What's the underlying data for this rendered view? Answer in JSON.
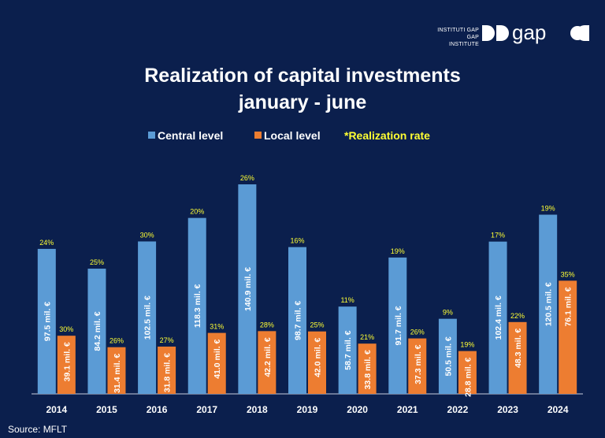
{
  "brand": {
    "line1": "INSTITUTI GAP",
    "line2": "GAP INSTITUTE",
    "logo_text": "gap"
  },
  "source": "Source: MFLT",
  "colors": {
    "background": "#0b1f4d",
    "central": "#5b9bd5",
    "local": "#ed7d31",
    "rate": "#ffff33",
    "text": "#ffffff"
  },
  "chart_data": {
    "type": "bar",
    "title": "Realization of capital investments",
    "subtitle": "january - june",
    "legend_position": "top",
    "categories": [
      "2014",
      "2015",
      "2016",
      "2017",
      "2018",
      "2019",
      "2020",
      "2021",
      "2022",
      "2023",
      "2024"
    ],
    "series": [
      {
        "name": "Central level",
        "values": [
          97.5,
          84.2,
          102.5,
          118.3,
          140.9,
          98.7,
          58.7,
          91.7,
          50.5,
          102.4,
          120.5
        ],
        "labels": [
          "97.5 mil. €",
          "84.2 mil. €",
          "102.5 mil. €",
          "118.3 mil. €",
          "140.9 mil. €",
          "98.7 mil. €",
          "58.7 mil. €",
          "91.7 mil. €",
          "50.5 mil. €",
          "102.4 mil. €",
          "120.5 mil. €"
        ],
        "rates": [
          "24%",
          "25%",
          "30%",
          "20%",
          "26%",
          "16%",
          "11%",
          "19%",
          "9%",
          "17%",
          "19%"
        ]
      },
      {
        "name": "Local level",
        "values": [
          39.1,
          31.4,
          31.8,
          41.0,
          42.2,
          42.0,
          33.8,
          37.3,
          28.8,
          48.3,
          76.1
        ],
        "labels": [
          "39.1 mil. €",
          "31.4 mil. €",
          "31.8 mil. €",
          "41.0 mil. €",
          "42.2 mil. €",
          "42.0 mil. €",
          "33.8 mil. €",
          "37.3 mil. €",
          "28.8 mil. €",
          "48.3 mil. €",
          "76.1 mil. €"
        ],
        "rates": [
          "30%",
          "26%",
          "27%",
          "31%",
          "28%",
          "25%",
          "21%",
          "26%",
          "19%",
          "22%",
          "35%"
        ]
      }
    ],
    "rate_legend": "*Realization rate",
    "ylim": [
      0,
      150
    ],
    "grid": false
  }
}
